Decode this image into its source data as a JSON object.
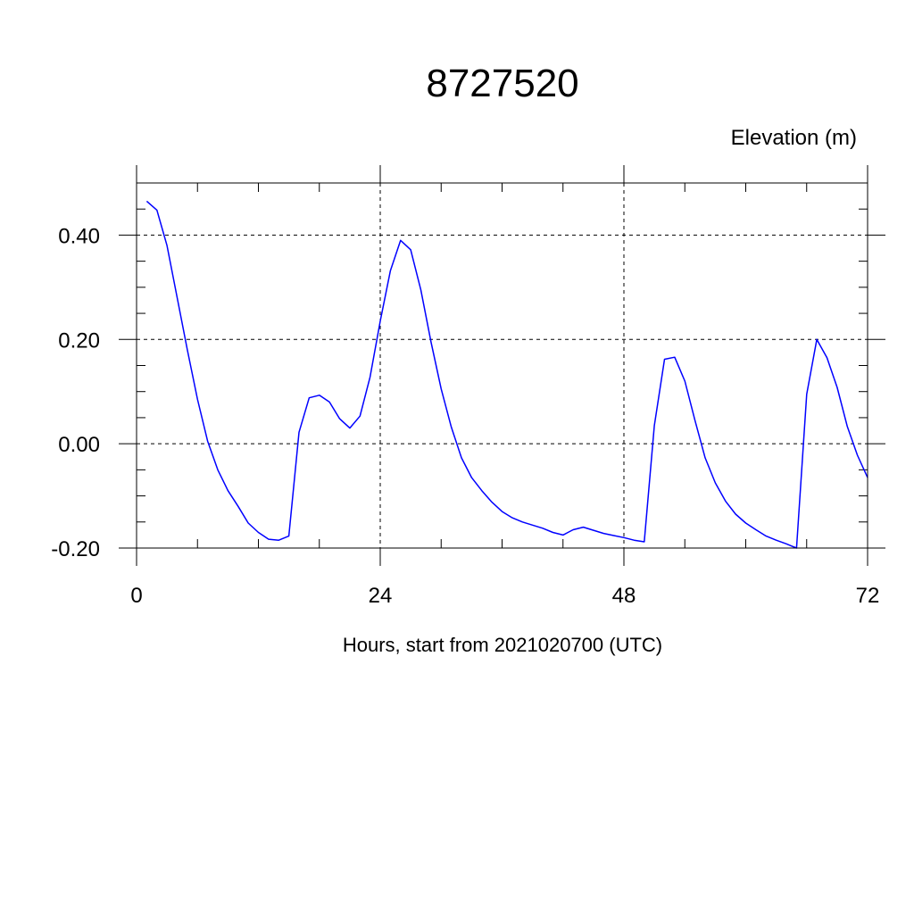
{
  "chart_data": {
    "type": "line",
    "title": "8727520",
    "ylabel": "Elevation (m)",
    "xlabel": "Hours, start from 2021020700 (UTC)",
    "xlim": [
      0,
      72
    ],
    "ylim": [
      -0.2,
      0.5
    ],
    "xticks": [
      0,
      24,
      48,
      72
    ],
    "xtick_labels": [
      "0",
      "24",
      "48",
      "72"
    ],
    "yticks": [
      -0.2,
      0.0,
      0.2,
      0.4
    ],
    "ytick_labels": [
      "-0.20",
      "0.00",
      "0.20",
      "0.40"
    ],
    "grid": true,
    "series": [
      {
        "color": "#0000ff",
        "x": [
          1,
          2,
          3,
          4,
          5,
          6,
          7,
          8,
          9,
          10,
          11,
          12,
          13,
          14,
          15,
          16,
          17,
          18,
          19,
          20,
          21,
          22,
          23,
          24,
          25,
          26,
          27,
          28,
          29,
          30,
          31,
          32,
          33,
          34,
          35,
          36,
          37,
          38,
          39,
          40,
          41,
          42,
          43,
          44,
          45,
          46,
          47,
          48,
          49,
          50,
          51,
          52,
          53,
          54,
          55,
          56,
          57,
          58,
          59,
          60,
          61,
          62,
          63,
          64,
          65,
          66,
          67,
          68,
          69,
          70,
          71,
          72
        ],
        "values": [
          0.465,
          0.448,
          0.38,
          0.28,
          0.18,
          0.085,
          0.005,
          -0.05,
          -0.09,
          -0.12,
          -0.152,
          -0.17,
          -0.183,
          -0.185,
          -0.177,
          0.022,
          0.088,
          0.093,
          0.08,
          0.048,
          0.03,
          0.053,
          0.128,
          0.235,
          0.332,
          0.39,
          0.372,
          0.295,
          0.195,
          0.105,
          0.032,
          -0.027,
          -0.065,
          -0.09,
          -0.112,
          -0.13,
          -0.142,
          -0.15,
          -0.156,
          -0.162,
          -0.17,
          -0.175,
          -0.165,
          -0.16,
          -0.166,
          -0.172,
          -0.176,
          -0.18,
          -0.185,
          -0.188,
          0.035,
          0.162,
          0.166,
          0.12,
          0.045,
          -0.027,
          -0.075,
          -0.11,
          -0.135,
          -0.152,
          -0.165,
          -0.177,
          -0.185,
          -0.192,
          -0.2,
          0.095,
          0.2,
          0.165,
          0.108,
          0.033,
          -0.022,
          -0.065
        ]
      }
    ]
  }
}
